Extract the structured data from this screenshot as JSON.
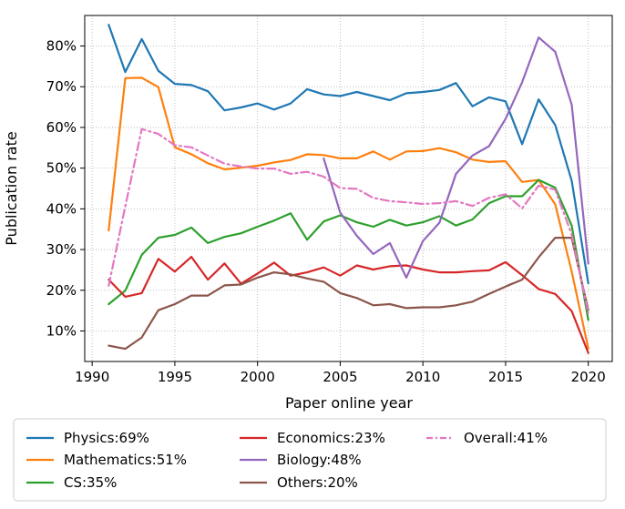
{
  "chart_data": {
    "type": "line",
    "xlabel": "Paper online year",
    "ylabel": "Publication rate",
    "xlim": [
      1989.55,
      2021.45
    ],
    "ylim": [
      0.025,
      0.875
    ],
    "xticks": [
      1990,
      1995,
      2000,
      2005,
      2010,
      2015,
      2020
    ],
    "xtick_labels": [
      "1990",
      "1995",
      "2000",
      "2005",
      "2010",
      "2015",
      "2020"
    ],
    "yticks": [
      0.1,
      0.2,
      0.3,
      0.4,
      0.5,
      0.6,
      0.7,
      0.8
    ],
    "ytick_labels": [
      "10%",
      "20%",
      "30%",
      "40%",
      "50%",
      "60%",
      "70%",
      "80%"
    ],
    "grid": true,
    "legend_position": "below",
    "series": [
      {
        "name": "Physics:69%",
        "color": "#1f77b4",
        "style": "solid",
        "x": [
          1991,
          1992,
          1993,
          1994,
          1995,
          1996,
          1997,
          1998,
          1999,
          2000,
          2001,
          2002,
          2003,
          2004,
          2005,
          2006,
          2007,
          2008,
          2009,
          2010,
          2011,
          2012,
          2013,
          2014,
          2015,
          2016,
          2017,
          2018,
          2019,
          2020
        ],
        "values": [
          0.852,
          0.736,
          0.817,
          0.739,
          0.707,
          0.704,
          0.689,
          0.642,
          0.649,
          0.659,
          0.644,
          0.659,
          0.694,
          0.681,
          0.677,
          0.687,
          0.677,
          0.667,
          0.684,
          0.687,
          0.692,
          0.709,
          0.652,
          0.674,
          0.664,
          0.559,
          0.669,
          0.606,
          0.469,
          0.217
        ]
      },
      {
        "name": "Mathematics:51%",
        "color": "#ff7f0e",
        "style": "solid",
        "x": [
          1991,
          1992,
          1993,
          1994,
          1995,
          1996,
          1997,
          1998,
          1999,
          2000,
          2001,
          2002,
          2003,
          2004,
          2005,
          2006,
          2007,
          2008,
          2009,
          2010,
          2011,
          2012,
          2013,
          2014,
          2015,
          2016,
          2017,
          2018,
          2019,
          2020
        ],
        "values": [
          0.347,
          0.721,
          0.722,
          0.699,
          0.551,
          0.534,
          0.512,
          0.497,
          0.501,
          0.506,
          0.514,
          0.52,
          0.534,
          0.532,
          0.524,
          0.524,
          0.541,
          0.521,
          0.541,
          0.542,
          0.549,
          0.539,
          0.521,
          0.515,
          0.517,
          0.466,
          0.471,
          0.411,
          0.246,
          0.057
        ]
      },
      {
        "name": "CS:35%",
        "color": "#2ca02c",
        "style": "solid",
        "x": [
          1991,
          1992,
          1993,
          1994,
          1995,
          1996,
          1997,
          1998,
          1999,
          2000,
          2001,
          2002,
          2003,
          2004,
          2005,
          2006,
          2007,
          2008,
          2009,
          2010,
          2011,
          2012,
          2013,
          2014,
          2015,
          2016,
          2017,
          2018,
          2019,
          2020
        ],
        "values": [
          0.166,
          0.199,
          0.287,
          0.329,
          0.336,
          0.354,
          0.316,
          0.331,
          0.34,
          0.356,
          0.371,
          0.389,
          0.324,
          0.369,
          0.384,
          0.367,
          0.356,
          0.373,
          0.359,
          0.367,
          0.382,
          0.359,
          0.374,
          0.414,
          0.431,
          0.431,
          0.471,
          0.452,
          0.359,
          0.127
        ]
      },
      {
        "name": "Economics:23%",
        "color": "#d62728",
        "style": "solid",
        "x": [
          1991,
          1992,
          1993,
          1994,
          1995,
          1996,
          1997,
          1998,
          1999,
          2000,
          2001,
          2002,
          2003,
          2004,
          2005,
          2006,
          2007,
          2008,
          2009,
          2010,
          2011,
          2012,
          2013,
          2014,
          2015,
          2016,
          2017,
          2018,
          2019,
          2020
        ],
        "values": [
          0.226,
          0.184,
          0.193,
          0.277,
          0.246,
          0.282,
          0.226,
          0.266,
          0.216,
          0.241,
          0.268,
          0.236,
          0.244,
          0.256,
          0.236,
          0.261,
          0.251,
          0.259,
          0.261,
          0.251,
          0.244,
          0.244,
          0.247,
          0.249,
          0.269,
          0.237,
          0.203,
          0.191,
          0.149,
          0.046
        ]
      },
      {
        "name": "Biology:48%",
        "color": "#9467bd",
        "style": "solid",
        "x": [
          2004,
          2005,
          2006,
          2007,
          2008,
          2009,
          2010,
          2011,
          2012,
          2013,
          2014,
          2015,
          2016,
          2017,
          2018,
          2019,
          2020
        ],
        "values": [
          0.524,
          0.391,
          0.334,
          0.289,
          0.316,
          0.231,
          0.321,
          0.366,
          0.486,
          0.531,
          0.554,
          0.621,
          0.711,
          0.821,
          0.786,
          0.656,
          0.266
        ]
      },
      {
        "name": "Others:20%",
        "color": "#8c564b",
        "style": "solid",
        "x": [
          1991,
          1992,
          1993,
          1994,
          1995,
          1996,
          1997,
          1998,
          1999,
          2000,
          2001,
          2002,
          2003,
          2004,
          2005,
          2006,
          2007,
          2008,
          2009,
          2010,
          2011,
          2012,
          2013,
          2014,
          2015,
          2016,
          2017,
          2018,
          2019,
          2020
        ],
        "values": [
          0.064,
          0.056,
          0.084,
          0.151,
          0.166,
          0.187,
          0.187,
          0.212,
          0.214,
          0.231,
          0.244,
          0.239,
          0.229,
          0.221,
          0.193,
          0.181,
          0.163,
          0.166,
          0.156,
          0.158,
          0.158,
          0.163,
          0.172,
          0.191,
          0.209,
          0.226,
          0.281,
          0.329,
          0.329,
          0.151
        ]
      },
      {
        "name": "Overall:41%",
        "color": "#e377c2",
        "style": "dashdot",
        "x": [
          1991,
          1992,
          1993,
          1994,
          1995,
          1996,
          1997,
          1998,
          1999,
          2000,
          2001,
          2002,
          2003,
          2004,
          2005,
          2006,
          2007,
          2008,
          2009,
          2010,
          2011,
          2012,
          2013,
          2014,
          2015,
          2016,
          2017,
          2018,
          2019,
          2020
        ],
        "values": [
          0.211,
          0.406,
          0.596,
          0.584,
          0.556,
          0.551,
          0.531,
          0.511,
          0.504,
          0.499,
          0.499,
          0.486,
          0.491,
          0.479,
          0.451,
          0.449,
          0.427,
          0.419,
          0.416,
          0.412,
          0.414,
          0.419,
          0.407,
          0.427,
          0.436,
          0.401,
          0.457,
          0.447,
          0.337,
          0.143
        ]
      }
    ]
  }
}
